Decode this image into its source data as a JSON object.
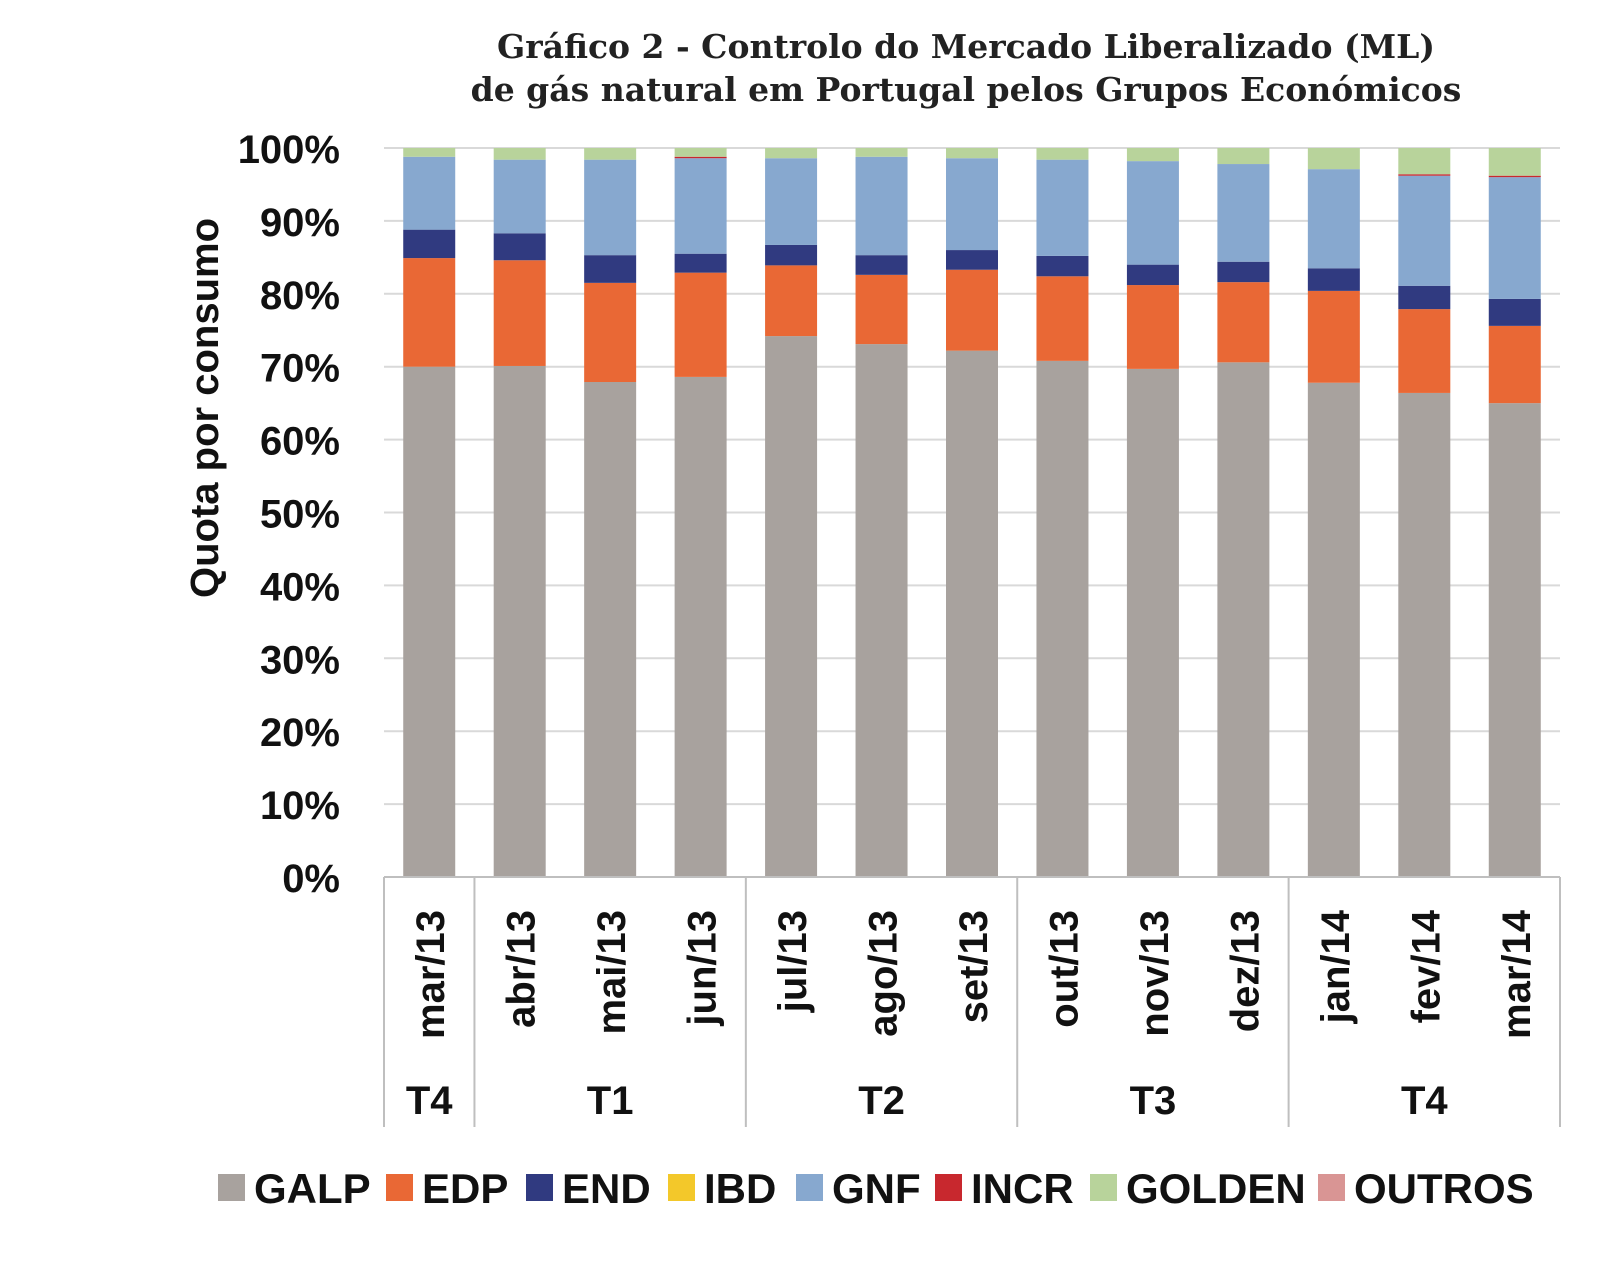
{
  "chart_data": {
    "type": "bar",
    "stacked": true,
    "title": [
      "Gráfico 2 - Controlo do Mercado Liberalizado (ML)",
      "de gás natural em Portugal pelos Grupos Económicos"
    ],
    "ylabel": "Quota por consumo",
    "xlabel": "",
    "ylim": [
      0,
      100
    ],
    "yticks": [
      "0%",
      "10%",
      "20%",
      "30%",
      "40%",
      "50%",
      "60%",
      "70%",
      "80%",
      "90%",
      "100%"
    ],
    "categories": [
      "mar/13",
      "abr/13",
      "mai/13",
      "jun/13",
      "jul/13",
      "ago/13",
      "set/13",
      "out/13",
      "nov/13",
      "dez/13",
      "jan/14",
      "fev/14",
      "mar/14"
    ],
    "groups": [
      {
        "label": "T4",
        "span": 1
      },
      {
        "label": "T1",
        "span": 3
      },
      {
        "label": "T2",
        "span": 3
      },
      {
        "label": "T3",
        "span": 3
      },
      {
        "label": "T4",
        "span": 3
      }
    ],
    "legend_position": "bottom",
    "series": [
      {
        "name": "GALP",
        "color": "#a8a29e",
        "values": [
          70.0,
          70.1,
          67.9,
          68.6,
          74.2,
          73.1,
          72.2,
          70.8,
          69.7,
          70.6,
          67.8,
          66.4,
          65.0
        ]
      },
      {
        "name": "EDP",
        "color": "#e96835",
        "values": [
          14.9,
          14.5,
          13.6,
          14.3,
          9.7,
          9.5,
          11.1,
          11.6,
          11.5,
          11.0,
          12.6,
          11.5,
          10.6
        ]
      },
      {
        "name": "END",
        "color": "#303a80",
        "values": [
          3.9,
          3.7,
          3.8,
          2.6,
          2.8,
          2.7,
          2.7,
          2.8,
          2.8,
          2.8,
          3.1,
          3.2,
          3.7
        ]
      },
      {
        "name": "IBD",
        "color": "#f3c82a",
        "values": [
          0,
          0,
          0,
          0,
          0,
          0,
          0,
          0,
          0,
          0,
          0,
          0,
          0
        ]
      },
      {
        "name": "GNF",
        "color": "#87a8cf",
        "values": [
          10.0,
          10.1,
          13.1,
          13.1,
          11.9,
          13.5,
          12.6,
          13.2,
          14.2,
          13.4,
          13.6,
          15.1,
          16.7
        ]
      },
      {
        "name": "INCR",
        "color": "#c8282e",
        "values": [
          0,
          0,
          0,
          0.2,
          0,
          0,
          0,
          0,
          0,
          0,
          0,
          0.2,
          0.2
        ]
      },
      {
        "name": "GOLDEN",
        "color": "#b8d39b",
        "values": [
          1.2,
          1.6,
          1.6,
          1.2,
          1.4,
          1.2,
          1.4,
          1.6,
          1.8,
          2.2,
          2.9,
          3.6,
          3.8
        ]
      },
      {
        "name": "OUTROS",
        "color": "#d99594",
        "values": [
          0,
          0,
          0,
          0,
          0,
          0,
          0,
          0,
          0,
          0,
          0,
          0,
          0
        ]
      }
    ]
  }
}
